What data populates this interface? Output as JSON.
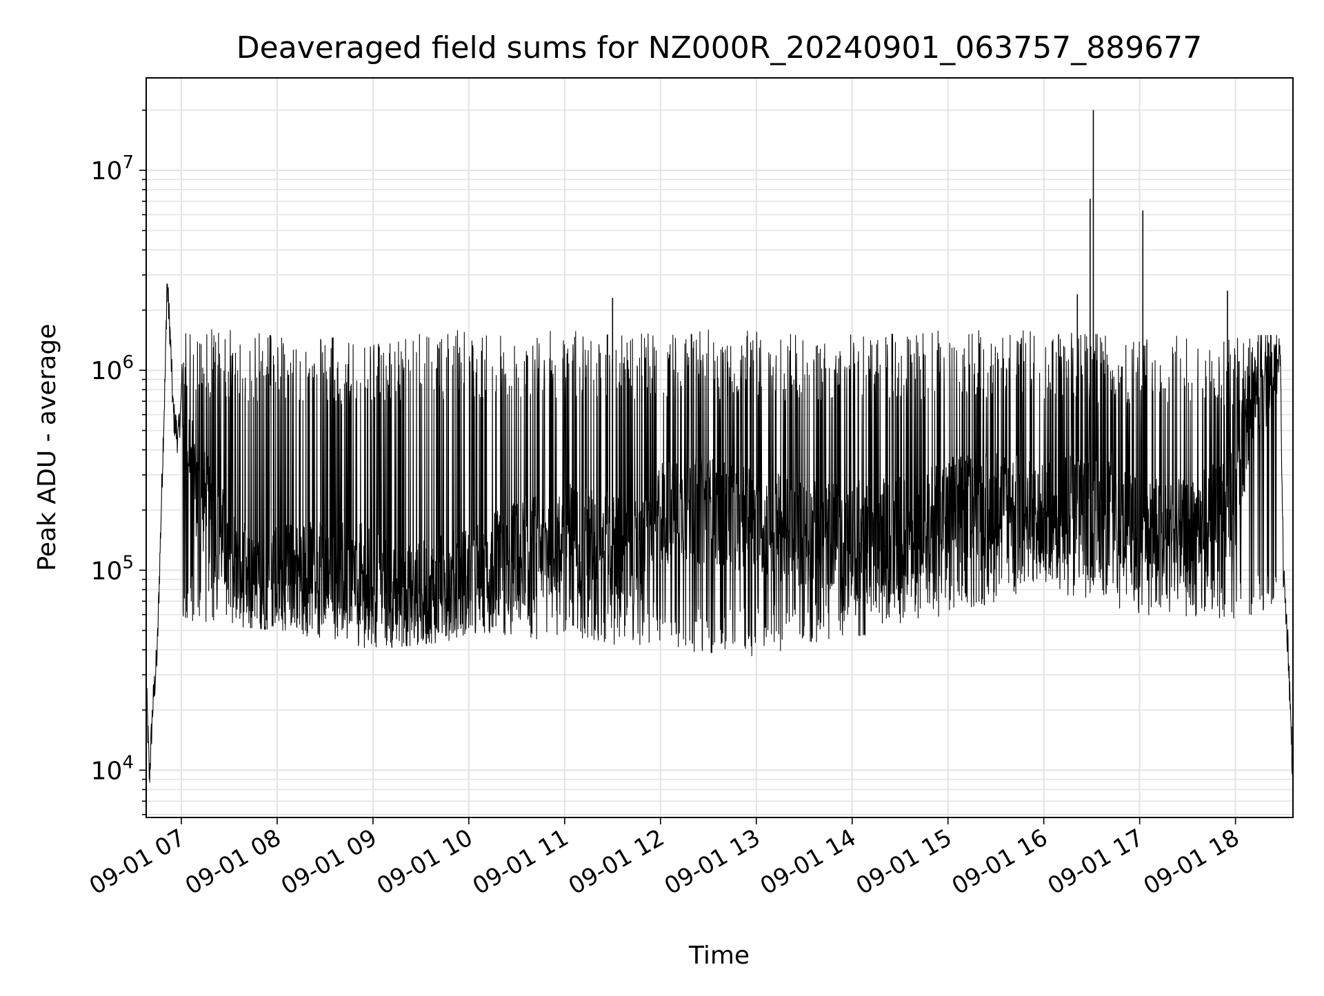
{
  "chart_data": {
    "type": "line",
    "title": "Deaveraged field sums for NZ000R_20240901_063757_889677",
    "xlabel": "Time",
    "ylabel": "Peak ADU - average",
    "yscale": "log",
    "ylim": [
      5800,
      29000000
    ],
    "xlim": [
      "2024-09-01 06:38",
      "2024-09-01 18:36"
    ],
    "grid": true,
    "line_color": "#000000",
    "x_ticks": [
      {
        "value": "2024-09-01 07:00",
        "label": "09-01 07"
      },
      {
        "value": "2024-09-01 08:00",
        "label": "09-01 08"
      },
      {
        "value": "2024-09-01 09:00",
        "label": "09-01 09"
      },
      {
        "value": "2024-09-01 10:00",
        "label": "09-01 10"
      },
      {
        "value": "2024-09-01 11:00",
        "label": "09-01 11"
      },
      {
        "value": "2024-09-01 12:00",
        "label": "09-01 12"
      },
      {
        "value": "2024-09-01 13:00",
        "label": "09-01 13"
      },
      {
        "value": "2024-09-01 14:00",
        "label": "09-01 14"
      },
      {
        "value": "2024-09-01 15:00",
        "label": "09-01 15"
      },
      {
        "value": "2024-09-01 16:00",
        "label": "09-01 16"
      },
      {
        "value": "2024-09-01 17:00",
        "label": "09-01 17"
      },
      {
        "value": "2024-09-01 18:00",
        "label": "09-01 18"
      }
    ],
    "y_ticks": [
      {
        "value": 10000,
        "base": "10",
        "exp": "4"
      },
      {
        "value": 100000,
        "base": "10",
        "exp": "5"
      },
      {
        "value": 1000000,
        "base": "10",
        "exp": "6"
      },
      {
        "value": 10000000,
        "base": "10",
        "exp": "7"
      }
    ],
    "series": [
      {
        "x": [
          "2024-09-01 06:38",
          "2024-09-01 06:40",
          "2024-09-01 06:42",
          "2024-09-01 06:45",
          "2024-09-01 06:48",
          "2024-09-01 06:50",
          "2024-09-01 06:51",
          "2024-09-01 06:53",
          "2024-09-01 06:55",
          "2024-09-01 06:58",
          "2024-09-01 07:00",
          "2024-09-01 07:10",
          "2024-09-01 07:20",
          "2024-09-01 07:30",
          "2024-09-01 07:45",
          "2024-09-01 08:00",
          "2024-09-01 08:20",
          "2024-09-01 08:40",
          "2024-09-01 09:00",
          "2024-09-01 09:15",
          "2024-09-01 09:30",
          "2024-09-01 10:00",
          "2024-09-01 10:30",
          "2024-09-01 11:00",
          "2024-09-01 11:30",
          "2024-09-01 11:50",
          "2024-09-01 12:00",
          "2024-09-01 12:30",
          "2024-09-01 13:00",
          "2024-09-01 13:30",
          "2024-09-01 14:00",
          "2024-09-01 14:30",
          "2024-09-01 15:00",
          "2024-09-01 15:30",
          "2024-09-01 16:00",
          "2024-09-01 16:31",
          "2024-09-01 17:00",
          "2024-09-01 17:30",
          "2024-09-01 18:00",
          "2024-09-01 18:10",
          "2024-09-01 18:20",
          "2024-09-01 18:28",
          "2024-09-01 18:30",
          "2024-09-01 18:33",
          "2024-09-01 18:36"
        ],
        "y": [
          28000,
          9000,
          20000,
          40000,
          300000,
          1000000,
          2800000,
          1500000,
          600000,
          450000,
          700000,
          250000,
          180000,
          120000,
          80000,
          90000,
          100000,
          95000,
          90000,
          70000,
          75000,
          90000,
          120000,
          150000,
          130000,
          120000,
          200000,
          200000,
          180000,
          150000,
          150000,
          160000,
          200000,
          220000,
          180000,
          250000,
          160000,
          150000,
          220000,
          800000,
          1000000,
          1200000,
          100000,
          40000,
          9000
        ]
      }
    ],
    "envelope": {
      "x": [
        "2024-09-01 07:00",
        "2024-09-01 08:00",
        "2024-09-01 09:00",
        "2024-09-01 10:00",
        "2024-09-01 11:00",
        "2024-09-01 12:00",
        "2024-09-01 13:00",
        "2024-09-01 14:00",
        "2024-09-01 15:00",
        "2024-09-01 16:00",
        "2024-09-01 17:00",
        "2024-09-01 18:00"
      ],
      "high": [
        1700000,
        1500000,
        1500000,
        1600000,
        1600000,
        1600000,
        1600000,
        1550000,
        1600000,
        1600000,
        1500000,
        1500000
      ],
      "low": [
        55000,
        50000,
        40000,
        45000,
        45000,
        40000,
        37000,
        45000,
        60000,
        80000,
        60000,
        55000
      ]
    },
    "spikes": [
      {
        "x": "2024-09-01 06:51",
        "y": 2800000
      },
      {
        "x": "2024-09-01 11:30",
        "y": 2300000
      },
      {
        "x": "2024-09-01 16:21",
        "y": 2400000
      },
      {
        "x": "2024-09-01 16:29",
        "y": 7200000
      },
      {
        "x": "2024-09-01 16:31",
        "y": 20000000
      },
      {
        "x": "2024-09-01 17:02",
        "y": 6300000
      },
      {
        "x": "2024-09-01 17:55",
        "y": 2500000
      }
    ]
  }
}
